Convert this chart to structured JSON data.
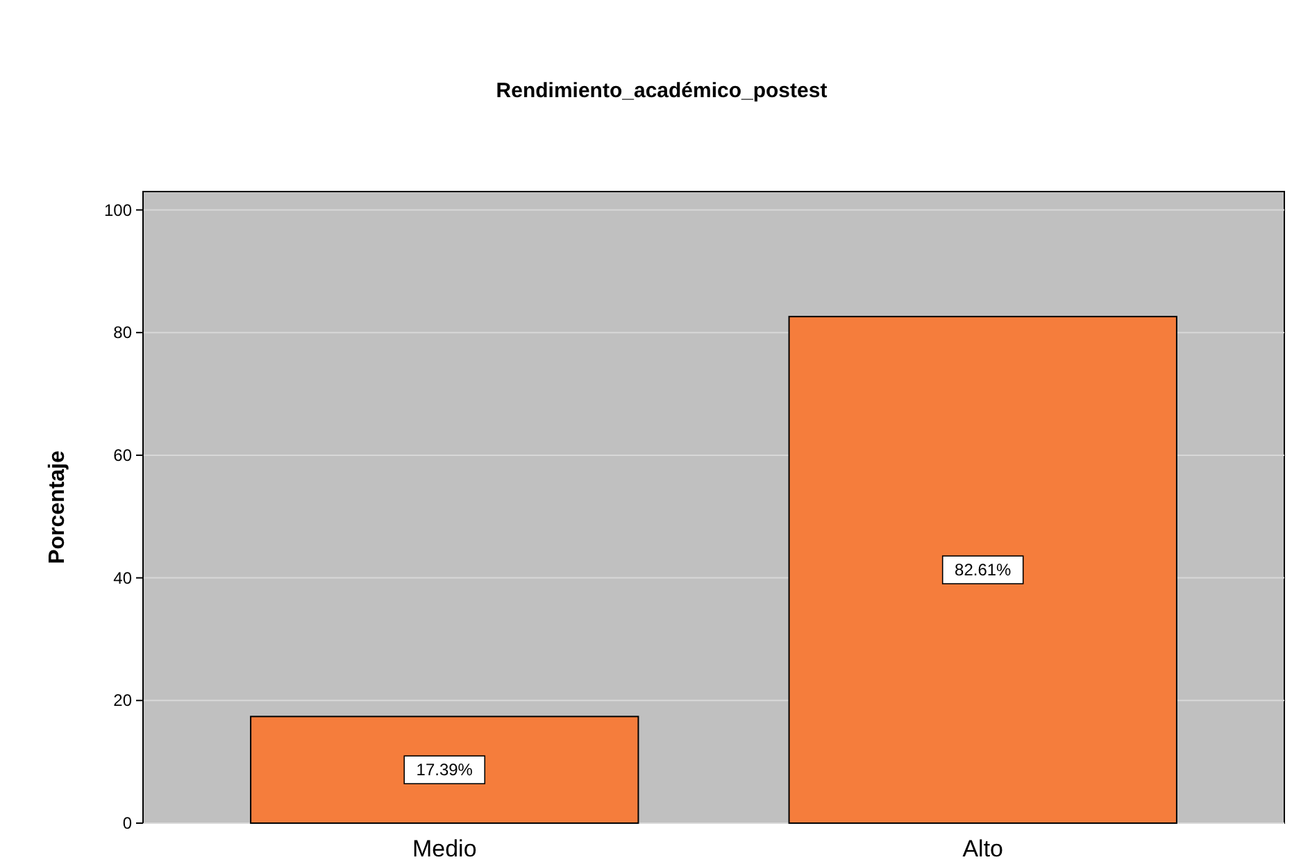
{
  "chart_data": {
    "type": "bar",
    "title": "Rendimiento_académico_postest",
    "ylabel": "Porcentaje",
    "categories": [
      "Medio",
      "Alto"
    ],
    "values": [
      17.39,
      82.61
    ],
    "color": "#f57d3c",
    "value_labels": [
      "17.39%",
      "82.61%"
    ],
    "ylim": [
      0,
      103
    ],
    "yticks": [
      0,
      20,
      40,
      60,
      80,
      100
    ],
    "grid": "y"
  }
}
